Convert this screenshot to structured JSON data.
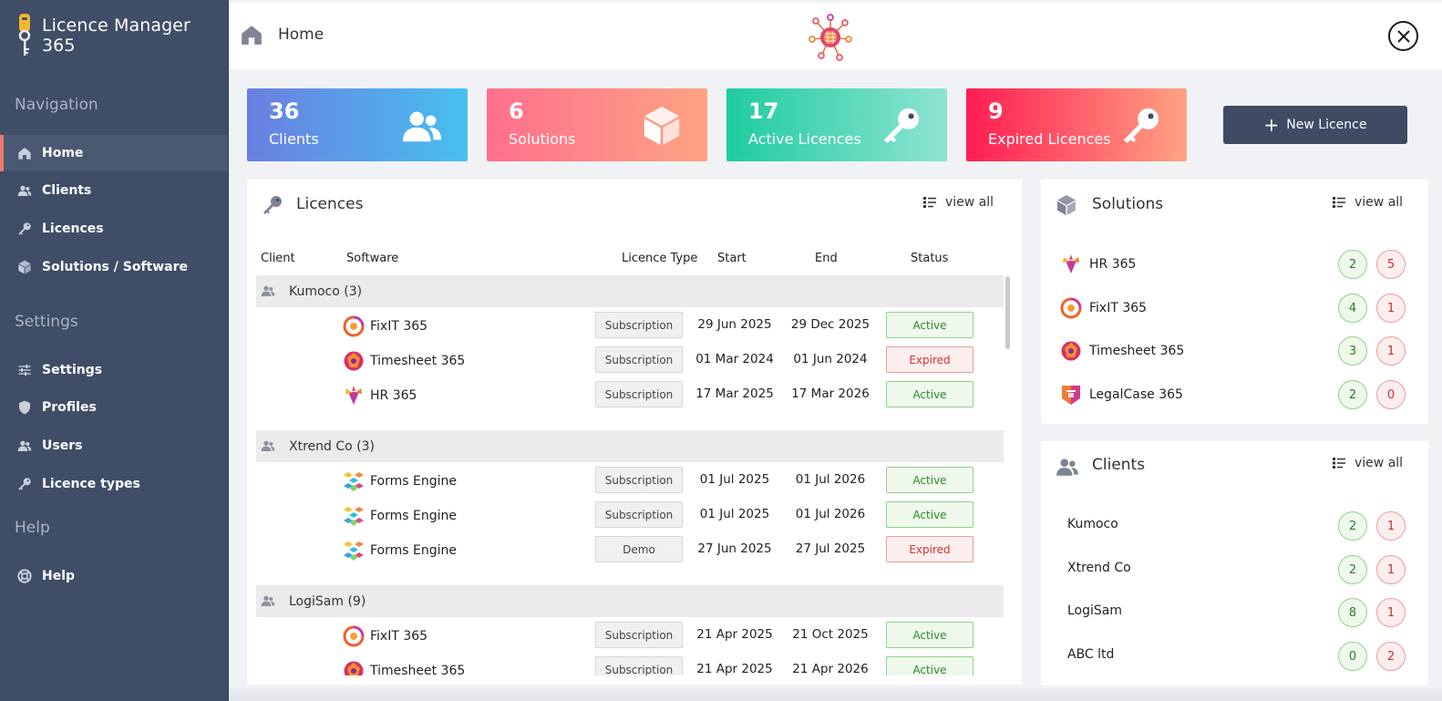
{
  "app": {
    "title": "Licence Manager 365"
  },
  "nav": {
    "section_navigation": "Navigation",
    "section_settings": "Settings",
    "section_help": "Help",
    "items": [
      {
        "label": "Home",
        "icon": "home-icon"
      },
      {
        "label": "Clients",
        "icon": "users-icon"
      },
      {
        "label": "Licences",
        "icon": "key-icon"
      },
      {
        "label": "Solutions / Software",
        "icon": "cube-icon"
      },
      {
        "label": "Settings",
        "icon": "sliders-icon"
      },
      {
        "label": "Profiles",
        "icon": "shield-icon"
      },
      {
        "label": "Users",
        "icon": "users-icon"
      },
      {
        "label": "Licence types",
        "icon": "key-icon"
      },
      {
        "label": "Help",
        "icon": "lifebuoy-icon"
      }
    ],
    "active": "Home"
  },
  "header": {
    "title": "Home"
  },
  "stats": [
    {
      "value": "36",
      "label": "Clients",
      "color_from": "#6a7fe0",
      "color_to": "#48bff0"
    },
    {
      "value": "6",
      "label": "Solutions",
      "color_from": "#ff6f8d",
      "color_to": "#fda383"
    },
    {
      "value": "17",
      "label": "Active Licences",
      "color_from": "#1ecca0",
      "color_to": "#8fe3d3"
    },
    {
      "value": "9",
      "label": "Expired Licences",
      "color_from": "#ff1c52",
      "color_to": "#ffa383"
    }
  ],
  "new_licence_label": "New Licence",
  "licences": {
    "title": "Licences",
    "view_all": "view all",
    "columns": [
      "Client",
      "Software",
      "Licence Type",
      "Start",
      "End",
      "Status"
    ],
    "groups": [
      {
        "client": "Kumoco (3)",
        "rows": [
          {
            "software": "FixIT 365",
            "type": "Subscription",
            "start": "29 Jun 2025",
            "end": "29 Dec 2025",
            "status": "Active"
          },
          {
            "software": "Timesheet 365",
            "type": "Subscription",
            "start": "01 Mar 2024",
            "end": "01 Jun 2024",
            "status": "Expired"
          },
          {
            "software": "HR 365",
            "type": "Subscription",
            "start": "17 Mar 2025",
            "end": "17 Mar 2026",
            "status": "Active"
          }
        ]
      },
      {
        "client": "Xtrend Co (3)",
        "rows": [
          {
            "software": "Forms Engine",
            "type": "Subscription",
            "start": "01 Jul 2025",
            "end": "01 Jul 2026",
            "status": "Active"
          },
          {
            "software": "Forms Engine",
            "type": "Subscription",
            "start": "01 Jul 2025",
            "end": "01 Jul 2026",
            "status": "Active"
          },
          {
            "software": "Forms Engine",
            "type": "Demo",
            "start": "27 Jun 2025",
            "end": "27 Jul 2025",
            "status": "Expired"
          }
        ]
      },
      {
        "client": "LogiSam (9)",
        "rows": [
          {
            "software": "FixIT 365",
            "type": "Subscription",
            "start": "21 Apr 2025",
            "end": "21 Oct 2025",
            "status": "Active"
          },
          {
            "software": "Timesheet 365",
            "type": "Subscription",
            "start": "21 Apr 2025",
            "end": "21 Apr 2026",
            "status": "Active"
          }
        ]
      }
    ]
  },
  "solutions": {
    "title": "Solutions",
    "view_all": "view all",
    "items": [
      {
        "name": "HR 365",
        "active": "2",
        "expired": "5"
      },
      {
        "name": "FixIT 365",
        "active": "4",
        "expired": "1"
      },
      {
        "name": "Timesheet 365",
        "active": "3",
        "expired": "1"
      },
      {
        "name": "LegalCase 365",
        "active": "2",
        "expired": "0"
      }
    ]
  },
  "clients": {
    "title": "Clients",
    "view_all": "view all",
    "items": [
      {
        "name": "Kumoco",
        "active": "2",
        "expired": "1"
      },
      {
        "name": "Xtrend Co",
        "active": "2",
        "expired": "1"
      },
      {
        "name": "LogiSam",
        "active": "8",
        "expired": "1"
      },
      {
        "name": "ABC ltd",
        "active": "0",
        "expired": "2"
      }
    ]
  }
}
